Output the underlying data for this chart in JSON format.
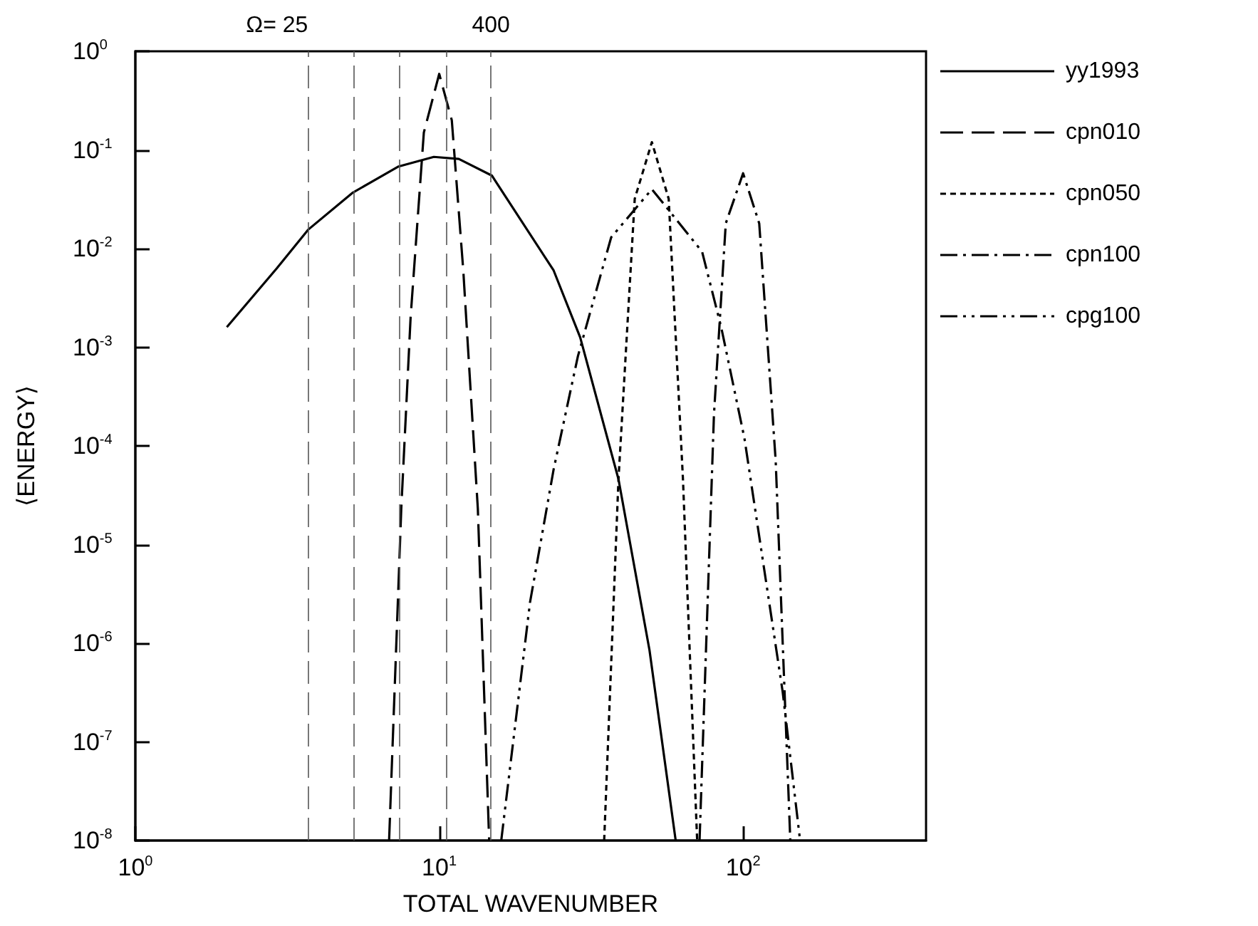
{
  "chart_data": {
    "type": "line",
    "xlabel": "TOTAL WAVENUMBER",
    "ylabel": "⟨ENERGY⟩",
    "log": "xy",
    "xlim": [
      1,
      400
    ],
    "xticks": [
      {
        "value": 1,
        "label": "10$^{0}$"
      },
      {
        "value": 10,
        "label": "10$^{1}$"
      },
      {
        "value": 100,
        "label": "10$^{2}$"
      }
    ],
    "ylim": [
      1e-08,
      1
    ],
    "yticks": [
      {
        "value": 1e-08,
        "label": "10$^{-8}$"
      },
      {
        "value": 1e-07,
        "label": "10$^{-7}$"
      },
      {
        "value": 1e-06,
        "label": "10$^{-6}$"
      },
      {
        "value": 1e-05,
        "label": "10$^{-5}$"
      },
      {
        "value": 0.0001,
        "label": "10$^{-4}$"
      },
      {
        "value": 0.001,
        "label": "10$^{-3}$"
      },
      {
        "value": 0.01,
        "label": "10$^{-2}$"
      },
      {
        "value": 0.1,
        "label": "10$^{-1}$"
      },
      {
        "value": 1,
        "label": "10$^{0}$"
      }
    ],
    "grid": false,
    "legend": "right",
    "marker": "none",
    "series": [
      {
        "name": "yy1993",
        "color": "#000000",
        "line_style": "solid",
        "x": [
          2,
          2.92,
          3.7,
          5.2,
          7.35,
          9.6,
          11.6,
          14.9,
          23.8,
          29.1,
          38.9,
          49.2,
          60
        ],
        "values": [
          0.0016,
          0.0063,
          0.0155,
          0.037,
          0.068,
          0.085,
          0.081,
          0.055,
          0.006,
          0.00126,
          4.6e-05,
          8.5e-07,
          1e-08
        ]
      },
      {
        "name": "cpn010",
        "color": "#000000",
        "line_style": "dashed",
        "x": [
          6.84,
          7.5,
          8.05,
          8.9,
          10,
          11,
          12,
          13.4,
          14.6
        ],
        "values": [
          1e-08,
          2.3e-05,
          0.002,
          0.15,
          0.59,
          0.2,
          0.006,
          2.3e-05,
          1e-08
        ]
      },
      {
        "name": "cpn050",
        "color": "#000000",
        "line_style": "dotted",
        "x": [
          34.9,
          38.9,
          44,
          50.1,
          56.9,
          63.4,
          70.6
        ],
        "values": [
          1e-08,
          4.6e-05,
          0.032,
          0.12,
          0.032,
          4.6e-05,
          1e-08
        ]
      },
      {
        "name": "cpn100",
        "color": "#000000",
        "line_style": "dashdot",
        "x": [
          71.9,
          80.2,
          87.7,
          100,
          113,
          128,
          143
        ],
        "values": [
          1e-08,
          0.00021,
          0.018,
          0.058,
          0.018,
          7.1e-05,
          1e-08
        ]
      },
      {
        "name": "cpg100",
        "color": "#000000",
        "line_style": "dashdotdot",
        "x": [
          16,
          19.9,
          23.8,
          28.6,
          36.8,
          50.1,
          73.3,
          84.7,
          101,
          135,
          154
        ],
        "values": [
          1e-08,
          2.6e-06,
          5.8e-05,
          0.00081,
          0.013,
          0.04,
          0.0093,
          0.0016,
          0.00012,
          3.2e-07,
          1e-08
        ]
      }
    ],
    "ref_lines": [
      {
        "axis": "x",
        "value": 3.7,
        "label": null,
        "color": "#555555",
        "line_style": "dashed"
      },
      {
        "axis": "x",
        "value": 5.24,
        "label": null,
        "color": "#555555",
        "line_style": "dashed"
      },
      {
        "axis": "x",
        "value": 7.4,
        "label": null,
        "color": "#555555",
        "line_style": "dashed"
      },
      {
        "axis": "x",
        "value": 10.5,
        "label": null,
        "color": "#555555",
        "line_style": "dashed"
      },
      {
        "axis": "x",
        "value": 14.8,
        "label": null,
        "color": "#555555",
        "line_style": "dashed"
      }
    ],
    "annotations": [
      "Ω= 25",
      "400"
    ]
  }
}
